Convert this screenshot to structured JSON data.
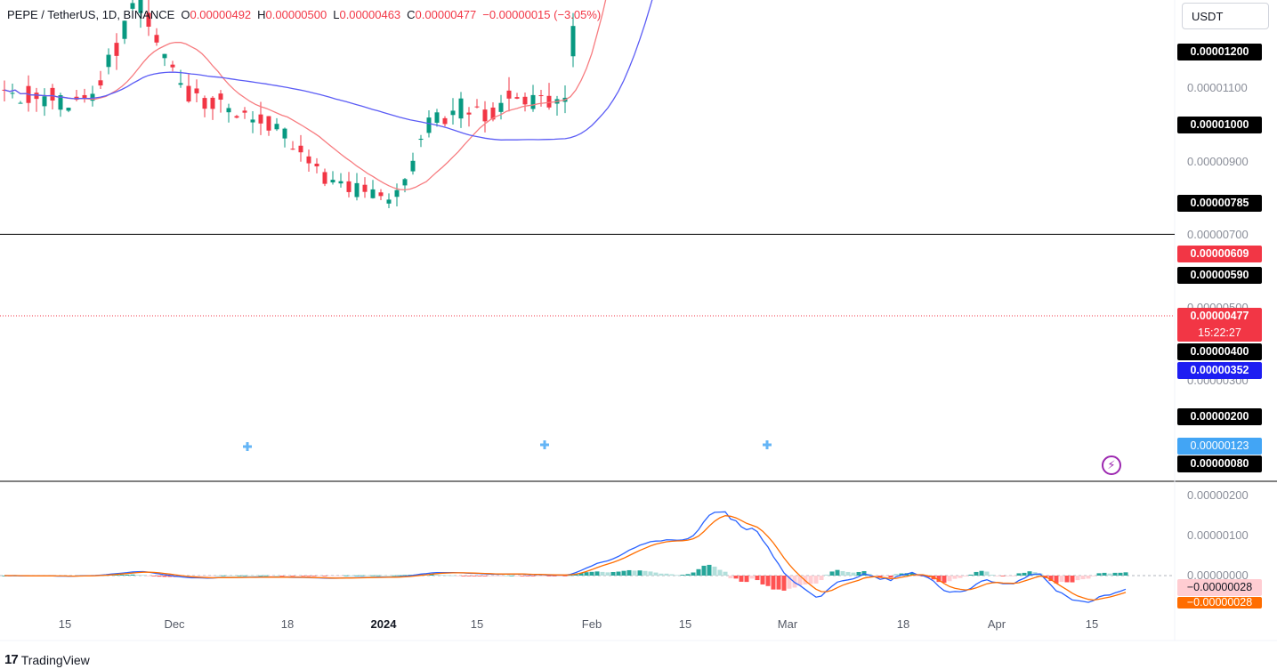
{
  "header": {
    "symbol": "PEPE / TetherUS, 1D, BINANCE",
    "o_label": "O",
    "o_value": "0.00000492",
    "h_label": "H",
    "h_value": "0.00000500",
    "l_label": "L",
    "l_value": "0.00000463",
    "c_label": "C",
    "c_value": "0.00000477",
    "change": "−0.00000015 (−3.05%)"
  },
  "currency": "USDT",
  "colors": {
    "up": "#089981",
    "down": "#f23645",
    "ma_fast": "#f77c80",
    "ma_slow": "#5b5cf5",
    "macd": "#2962ff",
    "signal": "#ff6d00"
  },
  "price_axis_labels": [
    "0.00001100",
    "0.00000900",
    "0.00000700",
    "0.00000500",
    "0.00000300"
  ],
  "horizontal_levels": [
    "0.00001200",
    "0.00001000",
    "0.00000785",
    "0.00000590",
    "0.00000400",
    "0.00000200",
    "0.00000080"
  ],
  "badges": {
    "ma_fast_value": "0.00000609",
    "current_price": "0.00000477",
    "countdown": "15:22:27",
    "ma_slow_value": "0.00000352",
    "marker_value": "0.00000123"
  },
  "macd_axis_labels": [
    "0.00000200",
    "0.00000100",
    "0.00000000"
  ],
  "macd_badges": {
    "histogram": "−0.00000028",
    "signal": "−0.00000028"
  },
  "x_labels": [
    "15",
    "Dec",
    "18",
    "2024",
    "15",
    "Feb",
    "15",
    "Mar",
    "18",
    "Apr",
    "15"
  ],
  "footer": {
    "brand": "TradingView",
    "logo": "17"
  },
  "chart_data": {
    "type": "candlestick",
    "symbol": "PEPE/USDT",
    "interval": "1D",
    "exchange": "BINANCE",
    "price_range": [
      6e-07,
      1.28e-05
    ],
    "candles_approx": {
      "period": "mid-Nov 2023 to mid-Apr 2024",
      "phases": [
        {
          "span": "mid-Nov to late Feb",
          "range": [
            8.5e-07,
            1.4e-06
          ]
        },
        {
          "span": "late Feb to mid-Mar",
          "move": "rally",
          "from": 1.2e-06,
          "to": 1.08e-05
        },
        {
          "span": "mid-Mar to early Apr",
          "range": [
            5.9e-06,
            9.3e-06
          ]
        },
        {
          "span": "early to mid Apr",
          "move": "decline",
          "to": 4.77e-06
        }
      ]
    },
    "ohlc_last": {
      "open": 4.92e-06,
      "high": 5e-06,
      "low": 4.63e-06,
      "close": 4.77e-06
    },
    "moving_averages": [
      {
        "type": "fast",
        "last": 6.09e-06
      },
      {
        "type": "slow",
        "last": 3.52e-06
      }
    ],
    "macd": {
      "range": [
        -5e-07,
        2.2e-06
      ],
      "macd_peak": 2e-06,
      "last_hist": -2.8e-07,
      "last_signal": -2.8e-07
    }
  }
}
